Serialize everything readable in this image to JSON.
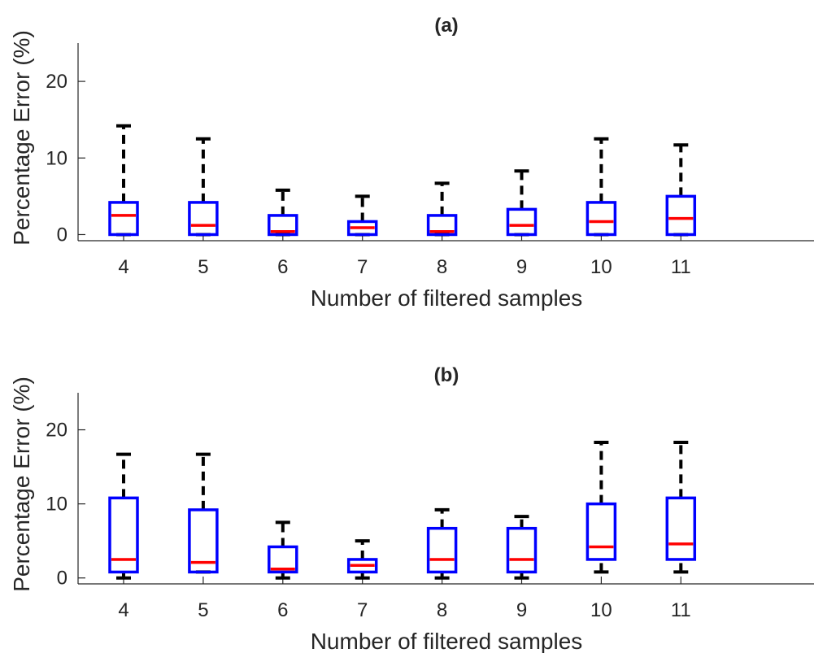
{
  "colors": {
    "box": "#0000ff",
    "median": "#ff0000",
    "whisker": "#000000",
    "axis": "#262626",
    "background": "#ffffff"
  },
  "chart_data": [
    {
      "type": "boxplot",
      "title": "(a)",
      "xlabel": "Number of filtered samples",
      "ylabel": "Percentage Error (%)",
      "categories": [
        "4",
        "5",
        "6",
        "7",
        "8",
        "9",
        "10",
        "11"
      ],
      "yticks": [
        "0",
        "10",
        "20"
      ],
      "ylim": [
        -0.8,
        25
      ],
      "grid": false,
      "boxes": [
        {
          "whislo": 0,
          "q1": 0,
          "med": 2.5,
          "q3": 4.2,
          "whishi": 14.2
        },
        {
          "whislo": 0,
          "q1": 0,
          "med": 1.2,
          "q3": 4.2,
          "whishi": 12.5
        },
        {
          "whislo": 0,
          "q1": 0,
          "med": 0.4,
          "q3": 2.5,
          "whishi": 5.8
        },
        {
          "whislo": 0,
          "q1": 0,
          "med": 0.9,
          "q3": 1.7,
          "whishi": 5.0
        },
        {
          "whislo": 0,
          "q1": 0,
          "med": 0.4,
          "q3": 2.5,
          "whishi": 6.7
        },
        {
          "whislo": 0,
          "q1": 0,
          "med": 1.2,
          "q3": 3.3,
          "whishi": 8.3
        },
        {
          "whislo": 0,
          "q1": 0,
          "med": 1.7,
          "q3": 4.2,
          "whishi": 12.5
        },
        {
          "whislo": 0,
          "q1": 0,
          "med": 2.1,
          "q3": 5.0,
          "whishi": 11.7
        }
      ]
    },
    {
      "type": "boxplot",
      "title": "(b)",
      "xlabel": "Number of filtered samples",
      "ylabel": "Percentage Error (%)",
      "categories": [
        "4",
        "5",
        "6",
        "7",
        "8",
        "9",
        "10",
        "11"
      ],
      "yticks": [
        "0",
        "10",
        "20"
      ],
      "ylim": [
        -0.8,
        25
      ],
      "grid": false,
      "boxes": [
        {
          "whislo": 0,
          "q1": 0.8,
          "med": 2.5,
          "q3": 10.8,
          "whishi": 16.7
        },
        {
          "whislo": 0.8,
          "q1": 0.8,
          "med": 2.1,
          "q3": 9.2,
          "whishi": 16.7
        },
        {
          "whislo": 0,
          "q1": 0.8,
          "med": 1.2,
          "q3": 4.2,
          "whishi": 7.5
        },
        {
          "whislo": 0,
          "q1": 0.8,
          "med": 1.7,
          "q3": 2.5,
          "whishi": 5.0
        },
        {
          "whislo": 0,
          "q1": 0.8,
          "med": 2.5,
          "q3": 6.7,
          "whishi": 9.2
        },
        {
          "whislo": 0,
          "q1": 0.8,
          "med": 2.5,
          "q3": 6.7,
          "whishi": 8.3
        },
        {
          "whislo": 0.8,
          "q1": 2.5,
          "med": 4.2,
          "q3": 10.0,
          "whishi": 18.3
        },
        {
          "whislo": 0.8,
          "q1": 2.5,
          "med": 4.6,
          "q3": 10.8,
          "whishi": 18.3
        }
      ]
    }
  ]
}
